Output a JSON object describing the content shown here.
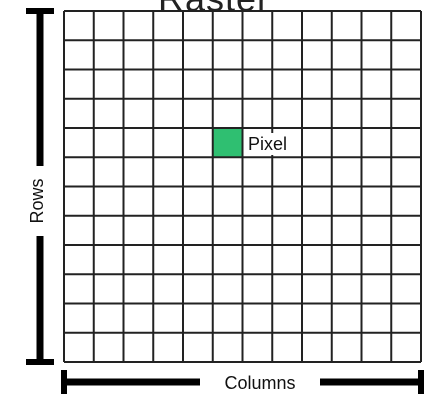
{
  "title": "Raster",
  "grid": {
    "rows": 12,
    "columns": 12,
    "highlight_row": 4,
    "highlight_col": 5,
    "highlight_color": "#2fbf71",
    "line_color": "#222222"
  },
  "labels": {
    "pixel": "Pixel",
    "rows": "Rows",
    "columns": "Columns"
  }
}
